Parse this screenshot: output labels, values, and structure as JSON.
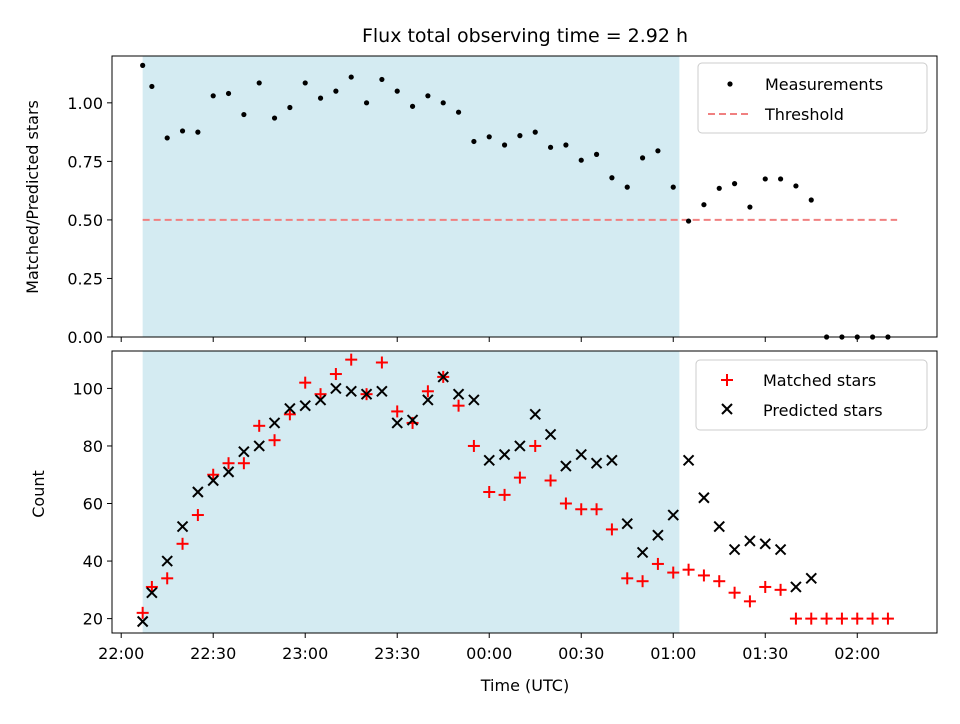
{
  "chart_data": {
    "title": "Flux total observing time = 2.92 h",
    "x_axis": {
      "label": "Time (UTC)",
      "ticks": [
        "22:00",
        "22:30",
        "23:00",
        "23:30",
        "00:00",
        "00:30",
        "01:00",
        "01:30",
        "02:00"
      ],
      "range": [
        "21:57",
        "02:26"
      ]
    },
    "highlight_span": {
      "start": "22:07",
      "end": "01:02",
      "color": "#d4ebf2"
    },
    "top": {
      "type": "scatter",
      "ylabel": "Matched/Predicted stars",
      "ylim": [
        0,
        1.2
      ],
      "yticks": [
        "0.00",
        "0.25",
        "0.50",
        "0.75",
        "1.00"
      ],
      "legend": {
        "position": "top-right",
        "entries": [
          "Measurements",
          "Threshold"
        ]
      },
      "threshold": {
        "name": "Threshold",
        "value": 0.5,
        "x_start": "22:07",
        "x_end": "02:13",
        "color": "#f08080"
      },
      "series": [
        {
          "name": "Measurements",
          "color": "#000000",
          "x": [
            "22:07",
            "22:10",
            "22:15",
            "22:20",
            "22:25",
            "22:30",
            "22:35",
            "22:40",
            "22:45",
            "22:50",
            "22:55",
            "23:00",
            "23:05",
            "23:10",
            "23:15",
            "23:20",
            "23:25",
            "23:30",
            "23:35",
            "23:40",
            "23:45",
            "23:50",
            "23:55",
            "00:00",
            "00:05",
            "00:10",
            "00:15",
            "00:20",
            "00:25",
            "00:30",
            "00:35",
            "00:40",
            "00:45",
            "00:50",
            "00:55",
            "01:00",
            "01:05",
            "01:10",
            "01:15",
            "01:20",
            "01:25",
            "01:30",
            "01:35",
            "01:40",
            "01:45",
            "01:50",
            "01:55",
            "02:00",
            "02:05",
            "02:10"
          ],
          "y": [
            1.16,
            1.07,
            0.85,
            0.88,
            0.875,
            1.03,
            1.04,
            0.95,
            1.085,
            0.935,
            0.98,
            1.085,
            1.02,
            1.05,
            1.11,
            1.0,
            1.1,
            1.05,
            0.985,
            1.03,
            1.0,
            0.96,
            0.835,
            0.855,
            0.82,
            0.86,
            0.875,
            0.81,
            0.82,
            0.755,
            0.78,
            0.68,
            0.64,
            0.765,
            0.795,
            0.64,
            0.495,
            0.565,
            0.635,
            0.655,
            0.555,
            0.675,
            0.675,
            0.645,
            0.585,
            0.0,
            0.0,
            0.0,
            0.0,
            0.0
          ]
        }
      ]
    },
    "bottom": {
      "type": "scatter",
      "ylabel": "Count",
      "ylim": [
        15,
        113
      ],
      "yticks": [
        "20",
        "40",
        "60",
        "80",
        "100"
      ],
      "legend": {
        "position": "top-right",
        "entries": [
          "Matched stars",
          "Predicted stars"
        ]
      },
      "series": [
        {
          "name": "Matched stars",
          "marker": "plus",
          "color": "#ff0000",
          "x": [
            "22:07",
            "22:10",
            "22:15",
            "22:20",
            "22:25",
            "22:30",
            "22:35",
            "22:40",
            "22:45",
            "22:50",
            "22:55",
            "23:00",
            "23:05",
            "23:10",
            "23:15",
            "23:20",
            "23:25",
            "23:30",
            "23:35",
            "23:40",
            "23:45",
            "23:50",
            "23:55",
            "00:00",
            "00:05",
            "00:10",
            "00:15",
            "00:20",
            "00:25",
            "00:30",
            "00:35",
            "00:40",
            "00:45",
            "00:50",
            "00:55",
            "01:00",
            "01:05",
            "01:10",
            "01:15",
            "01:20",
            "01:25",
            "01:30",
            "01:35",
            "01:40",
            "01:45",
            "01:50",
            "01:55",
            "02:00",
            "02:05",
            "02:10"
          ],
          "y": [
            22,
            31,
            34,
            46,
            56,
            70,
            74,
            74,
            87,
            82,
            91,
            102,
            98,
            105,
            110,
            98,
            109,
            92,
            88,
            99,
            104,
            94,
            80,
            64,
            63,
            69,
            80,
            68,
            60,
            58,
            58,
            51,
            34,
            33,
            39,
            36,
            37,
            35,
            33,
            29,
            26,
            31,
            30,
            20,
            20,
            20,
            20,
            20,
            20,
            20
          ]
        },
        {
          "name": "Predicted stars",
          "marker": "x",
          "color": "#000000",
          "x": [
            "22:07",
            "22:10",
            "22:15",
            "22:20",
            "22:25",
            "22:30",
            "22:35",
            "22:40",
            "22:45",
            "22:50",
            "22:55",
            "23:00",
            "23:05",
            "23:10",
            "23:15",
            "23:20",
            "23:25",
            "23:30",
            "23:35",
            "23:40",
            "23:45",
            "23:50",
            "23:55",
            "00:00",
            "00:05",
            "00:10",
            "00:15",
            "00:20",
            "00:25",
            "00:30",
            "00:35",
            "00:40",
            "00:45",
            "00:50",
            "00:55",
            "01:00",
            "01:05",
            "01:10",
            "01:15",
            "01:20",
            "01:25",
            "01:30",
            "01:35",
            "01:40",
            "01:45"
          ],
          "y": [
            19,
            29,
            40,
            52,
            64,
            68,
            71,
            78,
            80,
            88,
            93,
            94,
            96,
            100,
            99,
            98,
            99,
            88,
            89,
            96,
            104,
            98,
            96,
            75,
            77,
            80,
            91,
            84,
            73,
            77,
            74,
            75,
            53,
            43,
            49,
            56,
            75,
            62,
            52,
            44,
            47,
            46,
            44,
            31,
            34
          ]
        }
      ]
    }
  }
}
